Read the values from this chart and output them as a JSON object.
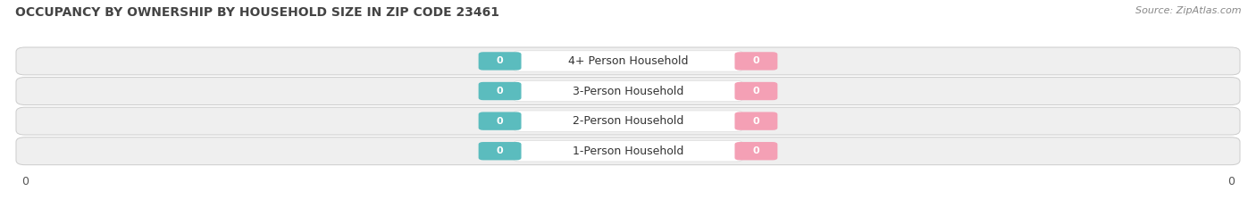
{
  "title": "OCCUPANCY BY OWNERSHIP BY HOUSEHOLD SIZE IN ZIP CODE 23461",
  "source": "Source: ZipAtlas.com",
  "categories": [
    "1-Person Household",
    "2-Person Household",
    "3-Person Household",
    "4+ Person Household"
  ],
  "owner_values": [
    0,
    0,
    0,
    0
  ],
  "renter_values": [
    0,
    0,
    0,
    0
  ],
  "owner_color": "#5bbcbe",
  "renter_color": "#f4a0b5",
  "bar_bg_color": "#efefef",
  "bar_border_color": "#cccccc",
  "title_fontsize": 10,
  "source_fontsize": 8,
  "label_fontsize": 9,
  "tick_fontsize": 9,
  "background_color": "#ffffff"
}
